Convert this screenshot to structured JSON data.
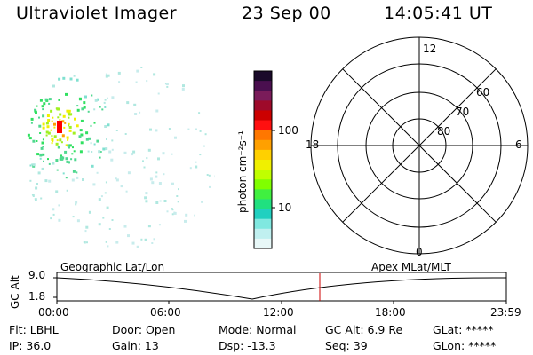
{
  "header": {
    "title": "Ultraviolet Imager",
    "date": "23 Sep 00",
    "time": "14:05:41 UT"
  },
  "colorbar": {
    "unit_label": "photon cm⁻²s⁻¹",
    "ticks": [
      "100",
      "10"
    ],
    "colors": [
      "#1a0a2a",
      "#4a0f4f",
      "#7a1c5a",
      "#9e0a2a",
      "#cc0000",
      "#ff1010",
      "#ff7700",
      "#ffa000",
      "#ffd000",
      "#f0f000",
      "#c0ff00",
      "#80ff00",
      "#40f040",
      "#20e080",
      "#20d0c0",
      "#80e8e0",
      "#c0f0f0",
      "#e8f8f8"
    ]
  },
  "image": {
    "hotspot_color": "#ff0000",
    "colors": [
      "#c8ecec",
      "#b0e8e0",
      "#80e0d0",
      "#50d890",
      "#30e060",
      "#a0f020",
      "#f0f000",
      "#ffa000"
    ]
  },
  "polar": {
    "mlt_labels": {
      "top": "12",
      "left": "18",
      "right": "6",
      "bottom": "0"
    },
    "lat_labels": [
      "60",
      "70",
      "80"
    ]
  },
  "altitude_panel": {
    "y_label": "GC Alt",
    "y_ticks": [
      "9.0",
      "1.8"
    ],
    "left_title": "Geographic Lat/Lon",
    "right_title": "Apex MLat/MLT",
    "x_ticks": [
      "00:00",
      "06:00",
      "12:00",
      "18:00",
      "23:59"
    ],
    "marker_color": "#cc0000"
  },
  "info": {
    "flt": "Flt: LBHL",
    "ip": "IP: 36.0",
    "door": "Door: Open",
    "gain": "Gain: 13",
    "mode": "Mode: Normal",
    "dsp": "Dsp:  -13.3",
    "gc_alt": "GC Alt: 6.9 Re",
    "seq": "Seq: 39",
    "glat": "GLat: *****",
    "glon": "GLon: *****"
  }
}
